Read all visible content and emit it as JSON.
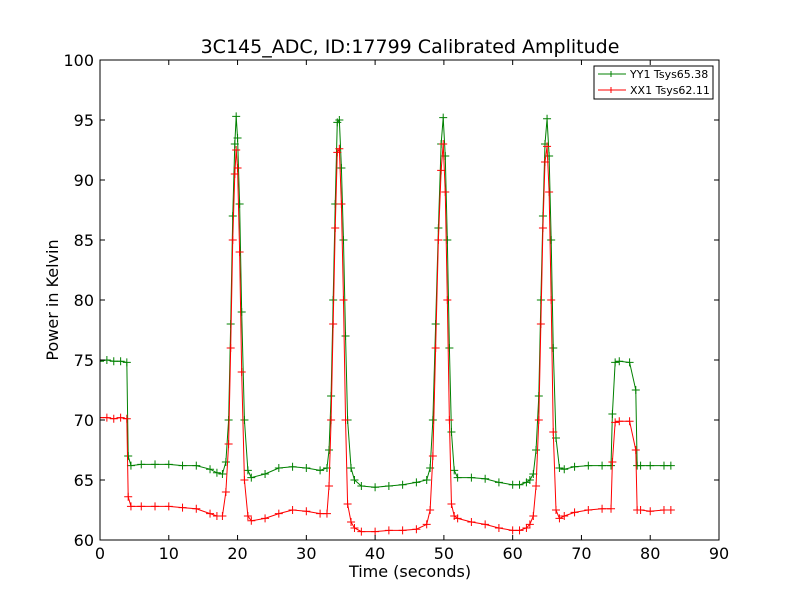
{
  "chart_data": {
    "type": "line",
    "title": "3C145_ADC, ID:17799 Calibrated Amplitude",
    "xlabel": "Time (seconds)",
    "ylabel": "Power in Kelvin",
    "xlim": [
      0,
      90
    ],
    "ylim": [
      60,
      100
    ],
    "xticks": [
      "0",
      "10",
      "20",
      "30",
      "40",
      "50",
      "60",
      "70",
      "80",
      "90"
    ],
    "yticks": [
      "60",
      "65",
      "70",
      "75",
      "80",
      "85",
      "90",
      "95",
      "100"
    ],
    "grid": false,
    "legend_position": "top-right",
    "series": [
      {
        "name": "YY1 Tsys65.38",
        "color": "#008000",
        "marker": "plus",
        "x": [
          0,
          1,
          2,
          3,
          3.9,
          4.1,
          4.5,
          6,
          8,
          10,
          12,
          14,
          16,
          17,
          17.8,
          18.3,
          18.7,
          19.0,
          19.3,
          19.6,
          19.8,
          20.0,
          20.3,
          20.6,
          21.0,
          21.5,
          22,
          24,
          26,
          28,
          30,
          32,
          33.0,
          33.3,
          33.6,
          33.9,
          34.2,
          34.5,
          34.8,
          35.1,
          35.4,
          35.7,
          36.0,
          36.5,
          37,
          38,
          40,
          42,
          44,
          46,
          47.5,
          48.0,
          48.4,
          48.8,
          49.2,
          49.6,
          49.9,
          50.2,
          50.5,
          50.8,
          51.1,
          51.5,
          52,
          54,
          56,
          58,
          60,
          61,
          62,
          62.5,
          63.0,
          63.4,
          63.8,
          64.1,
          64.4,
          64.7,
          65.0,
          65.3,
          65.6,
          65.9,
          66.3,
          66.8,
          67.5,
          69,
          71,
          73,
          74.3,
          74.5,
          74.9,
          75.5,
          77,
          77.9,
          78.1,
          78.6,
          80,
          82,
          83
        ],
        "y": [
          74.9,
          75.0,
          74.9,
          74.9,
          74.8,
          67.0,
          66.2,
          66.3,
          66.3,
          66.3,
          66.2,
          66.2,
          65.9,
          65.6,
          65.5,
          66.5,
          70.0,
          78.0,
          87.0,
          93.0,
          95.3,
          93.5,
          88.0,
          79.0,
          70.0,
          65.8,
          65.2,
          65.5,
          66.0,
          66.1,
          66.0,
          65.8,
          66.0,
          67.5,
          72.0,
          80.0,
          88.0,
          94.8,
          95.0,
          91.0,
          85.0,
          77.0,
          70.0,
          66.0,
          65.0,
          64.5,
          64.4,
          64.5,
          64.6,
          64.8,
          65.0,
          66.0,
          70.0,
          78.0,
          86.0,
          93.0,
          95.2,
          92.0,
          85.0,
          76.0,
          69.0,
          65.8,
          65.2,
          65.2,
          65.1,
          64.8,
          64.6,
          64.6,
          64.8,
          65.0,
          65.5,
          67.5,
          72.0,
          80.0,
          87.0,
          93.0,
          95.1,
          92.0,
          85.0,
          76.0,
          68.5,
          66.0,
          65.9,
          66.1,
          66.2,
          66.2,
          66.2,
          70.5,
          74.8,
          74.9,
          74.8,
          72.5,
          66.2,
          66.2,
          66.2,
          66.2,
          66.2
        ]
      },
      {
        "name": "XX1 Tsys62.11",
        "color": "#ff0000",
        "marker": "plus",
        "x": [
          0,
          1,
          2,
          3,
          3.9,
          4.1,
          4.5,
          6,
          8,
          10,
          12,
          14,
          16,
          17,
          17.8,
          18.3,
          18.7,
          19.0,
          19.3,
          19.6,
          19.8,
          20.0,
          20.3,
          20.6,
          21.0,
          21.5,
          22,
          24,
          26,
          28,
          30,
          32,
          33.0,
          33.3,
          33.6,
          33.9,
          34.2,
          34.5,
          34.8,
          35.1,
          35.4,
          35.7,
          36.0,
          36.5,
          37,
          38,
          40,
          42,
          44,
          46,
          47.5,
          48.0,
          48.4,
          48.8,
          49.2,
          49.6,
          49.9,
          50.2,
          50.5,
          50.8,
          51.1,
          51.5,
          52,
          54,
          56,
          58,
          60,
          61,
          62,
          62.5,
          63.0,
          63.4,
          63.8,
          64.1,
          64.4,
          64.7,
          65.0,
          65.3,
          65.6,
          65.9,
          66.3,
          66.8,
          67.5,
          69,
          71,
          73,
          74.3,
          74.5,
          74.9,
          75.5,
          77,
          77.9,
          78.1,
          78.6,
          80,
          82,
          83
        ],
        "y": [
          70.2,
          70.2,
          70.1,
          70.2,
          70.1,
          63.6,
          62.8,
          62.8,
          62.8,
          62.8,
          62.7,
          62.6,
          62.2,
          62.0,
          62.0,
          64.0,
          68.0,
          76.0,
          85.0,
          90.5,
          92.5,
          91.0,
          84.0,
          74.0,
          65.0,
          62.0,
          61.6,
          61.8,
          62.2,
          62.5,
          62.4,
          62.2,
          62.2,
          64.5,
          70.0,
          78.0,
          86.0,
          92.3,
          92.6,
          88.0,
          80.0,
          70.0,
          63.0,
          61.5,
          61.0,
          60.7,
          60.7,
          60.8,
          60.8,
          60.9,
          61.3,
          62.5,
          67.0,
          76.0,
          85.0,
          90.8,
          93.0,
          89.0,
          80.0,
          70.0,
          63.0,
          62.0,
          61.8,
          61.5,
          61.3,
          61.0,
          60.8,
          60.8,
          61.0,
          61.3,
          62.0,
          64.5,
          70.0,
          78.0,
          86.0,
          91.5,
          92.8,
          89.0,
          80.0,
          69.0,
          62.5,
          61.8,
          62.0,
          62.3,
          62.5,
          62.6,
          62.6,
          66.5,
          69.8,
          69.9,
          69.9,
          67.5,
          62.5,
          62.5,
          62.4,
          62.5,
          62.5
        ]
      }
    ]
  }
}
